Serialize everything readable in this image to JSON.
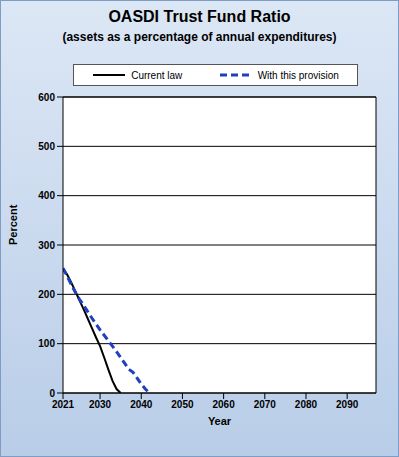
{
  "chart_data": {
    "type": "line",
    "title": "OASDI Trust Fund Ratio",
    "subtitle": "(assets as a percentage of annual expenditures)",
    "x_label": "Year",
    "y_label": "Percent",
    "x": [
      2021,
      2022,
      2023,
      2024,
      2025,
      2026,
      2027,
      2028,
      2029,
      2030,
      2031,
      2032,
      2033,
      2034,
      2035,
      2036,
      2037,
      2038,
      2039,
      2040,
      2041,
      2042
    ],
    "series": [
      {
        "name": "Current law",
        "color": "#000000",
        "line_style": "solid",
        "values": [
          253,
          240,
          224,
          206,
          188,
          170,
          151,
          132,
          113,
          95,
          72,
          48,
          25,
          8,
          0,
          null,
          null,
          null,
          null,
          null,
          null,
          null
        ]
      },
      {
        "name": "With this provision",
        "color": "#1f3fbf",
        "line_style": "dashed",
        "values": [
          253,
          237,
          220,
          204,
          190,
          178,
          165,
          152,
          140,
          128,
          117,
          106,
          95,
          84,
          72,
          60,
          48,
          42,
          30,
          18,
          8,
          0
        ]
      }
    ],
    "xlim": [
      2021,
      2097
    ],
    "xticks": [
      2021,
      2030,
      2040,
      2050,
      2060,
      2070,
      2080,
      2090
    ],
    "ylim": [
      0,
      600
    ],
    "yticks": [
      0,
      100,
      200,
      300,
      400,
      500,
      600
    ],
    "grid": true,
    "legend": "top"
  }
}
